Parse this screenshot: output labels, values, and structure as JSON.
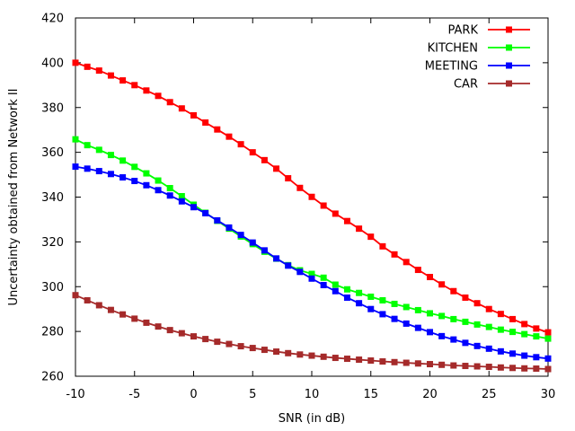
{
  "chart_data": {
    "type": "line",
    "title": "",
    "xlabel": "SNR (in dB)",
    "ylabel": "Uncertainty obtained from Network II",
    "xlim": [
      -10,
      30
    ],
    "ylim": [
      260,
      420
    ],
    "xticks": [
      -10,
      -5,
      0,
      5,
      10,
      15,
      20,
      25,
      30
    ],
    "yticks": [
      260,
      280,
      300,
      320,
      340,
      360,
      380,
      400,
      420
    ],
    "legend_position": "top-right",
    "x": [
      -10,
      -9,
      -8,
      -7,
      -6,
      -5,
      -4,
      -3,
      -2,
      -1,
      0,
      1,
      2,
      3,
      4,
      5,
      6,
      7,
      8,
      9,
      10,
      11,
      12,
      13,
      14,
      15,
      16,
      17,
      18,
      19,
      20,
      21,
      22,
      23,
      24,
      25,
      26,
      27,
      28,
      29,
      30
    ],
    "series": [
      {
        "name": "PARK",
        "color": "#ff0000",
        "values": [
          400.0,
          398.2,
          396.5,
          394.3,
          392.1,
          390.0,
          387.6,
          385.2,
          382.4,
          379.6,
          376.5,
          373.3,
          370.2,
          367.0,
          363.6,
          360.0,
          356.5,
          352.7,
          348.4,
          344.1,
          340.1,
          336.2,
          332.6,
          329.3,
          325.9,
          322.3,
          318.0,
          314.4,
          311.0,
          307.5,
          304.3,
          301.0,
          298.0,
          295.1,
          292.6,
          290.0,
          287.8,
          285.5,
          283.3,
          281.3,
          279.6
        ]
      },
      {
        "name": "KITCHEN",
        "color": "#00ff00",
        "values": [
          365.8,
          363.2,
          361.1,
          358.8,
          356.3,
          353.5,
          350.6,
          347.4,
          344.0,
          340.4,
          336.6,
          333.0,
          329.4,
          325.9,
          322.4,
          319.0,
          315.6,
          312.5,
          309.6,
          307.3,
          305.7,
          304.0,
          300.9,
          298.8,
          297.2,
          295.5,
          293.9,
          292.3,
          290.9,
          289.5,
          288.1,
          286.9,
          285.5,
          284.3,
          283.1,
          282.0,
          280.8,
          279.8,
          278.8,
          277.8,
          276.8
        ]
      },
      {
        "name": "MEETING",
        "color": "#0000ff",
        "values": [
          353.6,
          352.7,
          351.6,
          350.3,
          348.8,
          347.2,
          345.3,
          343.1,
          340.7,
          338.1,
          335.5,
          332.8,
          329.6,
          326.4,
          323.1,
          319.7,
          316.2,
          312.6,
          309.4,
          306.6,
          303.6,
          300.7,
          298.0,
          295.1,
          292.6,
          290.0,
          287.7,
          285.6,
          283.5,
          281.6,
          279.7,
          277.9,
          276.4,
          274.9,
          273.5,
          272.3,
          271.1,
          270.1,
          269.2,
          268.5,
          267.9
        ]
      },
      {
        "name": "CAR",
        "color": "#a52a2a",
        "values": [
          296.2,
          293.9,
          291.7,
          289.6,
          287.6,
          285.7,
          283.9,
          282.2,
          280.6,
          279.2,
          277.8,
          276.6,
          275.4,
          274.4,
          273.4,
          272.6,
          271.8,
          271.0,
          270.3,
          269.7,
          269.2,
          268.7,
          268.2,
          267.8,
          267.4,
          267.0,
          266.6,
          266.3,
          266.0,
          265.7,
          265.4,
          265.1,
          264.8,
          264.6,
          264.4,
          264.2,
          263.9,
          263.7,
          263.5,
          263.4,
          263.2
        ]
      }
    ]
  }
}
